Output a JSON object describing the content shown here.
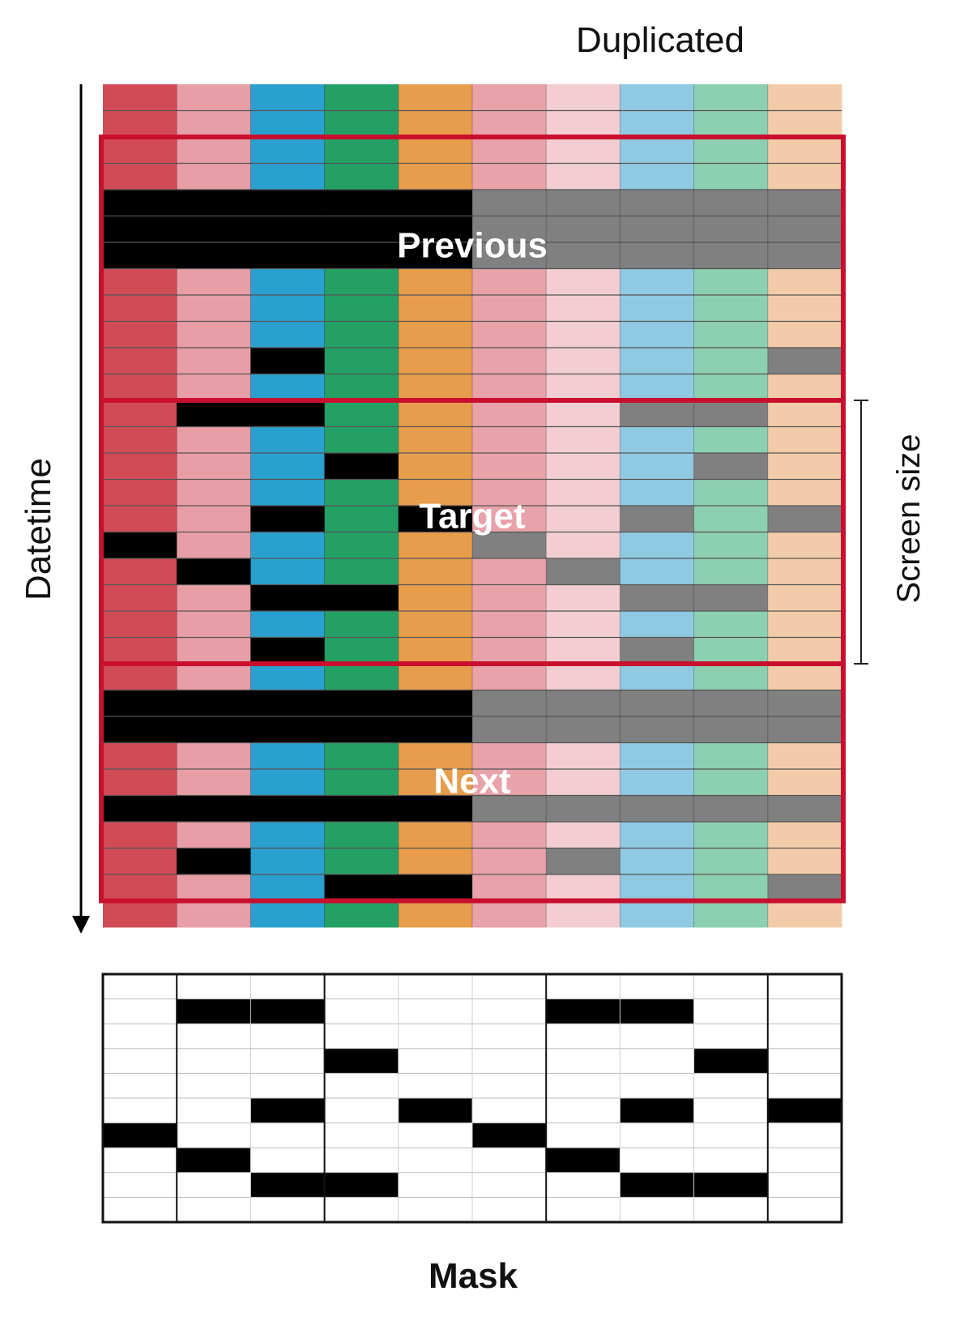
{
  "labels": {
    "duplicated": "Duplicated",
    "datetime": "Datetime",
    "screen_size": "Screen size",
    "previous": "Previous",
    "target": "Target",
    "next": "Next",
    "mask": "Mask"
  },
  "colors": {
    "features": [
      "#d14b57",
      "#e89ea6",
      "#2aa0cf",
      "#24a064",
      "#e89d4c"
    ],
    "duplicates": [
      "#e8a2a9",
      "#f2cdd1",
      "#8fc9e2",
      "#8dd0b1",
      "#f2ccaa"
    ],
    "missing_original": "#000000",
    "missing_duplicate": "#808080",
    "window_border": "#c8102e",
    "row_line": "#555555",
    "mask_on": "#000000",
    "mask_off": "#ffffff"
  },
  "grid": {
    "rows": [
      {
        "h": 1,
        "c": "..........",
        "sep": true
      },
      {
        "h": 1,
        "c": ".........."
      },
      {
        "h": 1,
        "c": ".........."
      },
      {
        "h": 1,
        "c": ".........."
      },
      {
        "h": 1,
        "c": "XXXXXXXXXX"
      },
      {
        "h": 1,
        "c": "XXXXXXXXXX"
      },
      {
        "h": 1,
        "c": "XXXXXXXXXX"
      },
      {
        "h": 1,
        "c": ".........."
      },
      {
        "h": 1,
        "c": ".........."
      },
      {
        "h": 1,
        "c": ".........."
      },
      {
        "h": 1,
        "c": "..X......X"
      },
      {
        "h": 1,
        "c": ".........."
      },
      {
        "h": 1,
        "c": ".XX....XX."
      },
      {
        "h": 1,
        "c": ".........."
      },
      {
        "h": 1,
        "c": "...X....X."
      },
      {
        "h": 1,
        "c": ".........."
      },
      {
        "h": 1,
        "c": "..X.X..X.X"
      },
      {
        "h": 1,
        "c": "X....X...."
      },
      {
        "h": 1,
        "c": ".X....X..."
      },
      {
        "h": 1,
        "c": "..XX...XX."
      },
      {
        "h": 1,
        "c": ".........."
      },
      {
        "h": 1,
        "c": "..X....X.."
      },
      {
        "h": 1,
        "c": ".........."
      },
      {
        "h": 1,
        "c": "XXXXXXXXXX"
      },
      {
        "h": 1,
        "c": "XXXXXXXXXX"
      },
      {
        "h": 1,
        "c": ".........."
      },
      {
        "h": 1,
        "c": ".........."
      },
      {
        "h": 1,
        "c": "XXXXXXXXXX"
      },
      {
        "h": 1,
        "c": ".........."
      },
      {
        "h": 1,
        "c": ".X....X..."
      },
      {
        "h": 1,
        "c": "...XX....X"
      },
      {
        "h": 1,
        "c": ".........."
      }
    ],
    "windows": [
      {
        "name": "Previous",
        "start_row": 2,
        "end_row": 12
      },
      {
        "name": "Target",
        "start_row": 12,
        "end_row": 22
      },
      {
        "name": "Next",
        "start_row": 22,
        "end_row": 31
      }
    ],
    "screen_size_rows": [
      12,
      22
    ]
  },
  "mask": {
    "rows": [
      "..........",
      ".XX...XX..",
      "..........",
      "...X....X.",
      "..........",
      "..X.X..X.X",
      "X....X....",
      ".X....X...",
      "..XX...XX.",
      ".........."
    ]
  }
}
